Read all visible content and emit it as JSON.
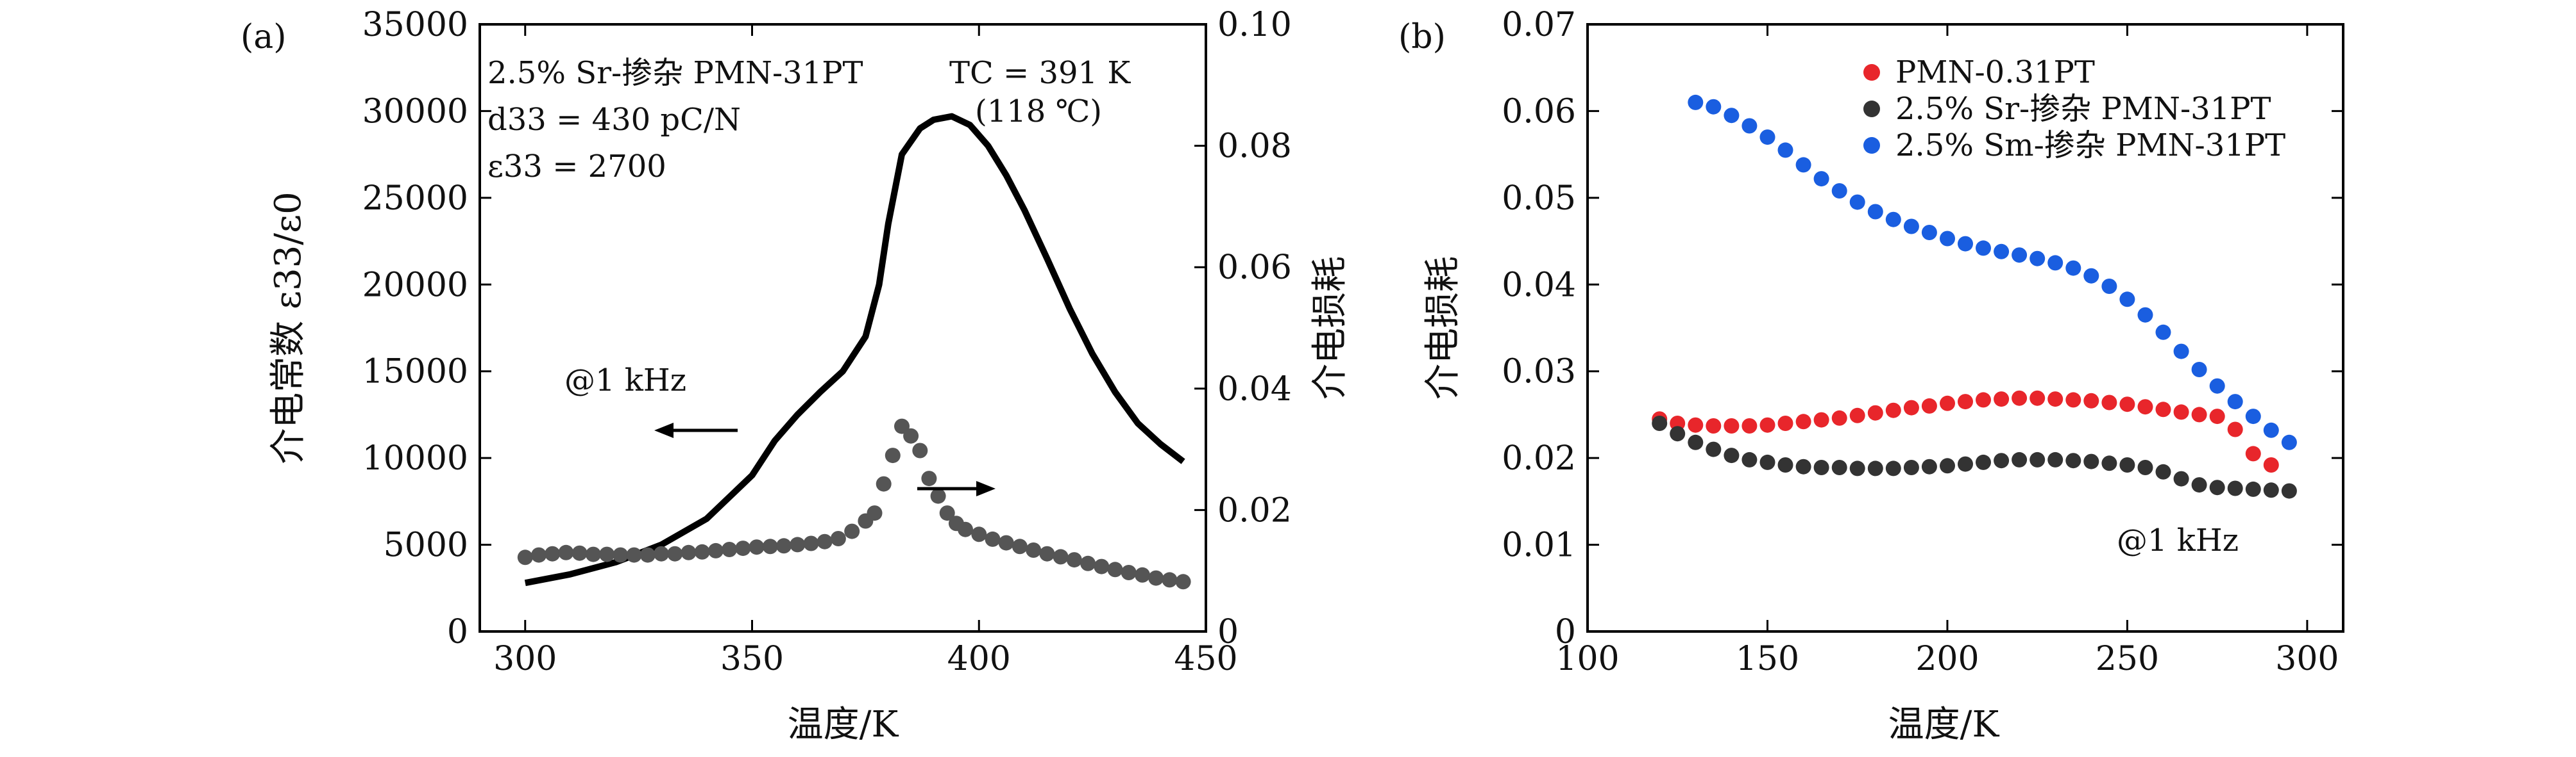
{
  "chart_data": [
    {
      "type": "line",
      "panel_label": "(a)",
      "xlabel": "温度/K",
      "ylabel": "介电常数 ε33/ε0",
      "ylabel_right": "介电损耗",
      "xlim": [
        290,
        450
      ],
      "ylim": [
        0,
        35000
      ],
      "ylim_right": [
        0,
        0.1
      ],
      "xticks": [
        "300",
        "350",
        "400",
        "450"
      ],
      "yticks": [
        "0",
        "5000",
        "10000",
        "15000",
        "20000",
        "25000",
        "30000",
        "35000"
      ],
      "yticks_right": [
        "0",
        "0.02",
        "0.04",
        "0.06",
        "0.08",
        "0.10"
      ],
      "annotations": {
        "composition": "2.5% Sr-掺杂 PMN-31PT",
        "d33": "d33 = 430 pC/N",
        "eps33": "ε33 = 2700",
        "tc": "TC = 391 K",
        "tc_c": "(118 ℃)",
        "freq": "@1 kHz"
      },
      "series": [
        {
          "axis": "left",
          "style": "solid line",
          "color": "#000000",
          "x": [
            300,
            310,
            320,
            330,
            340,
            350,
            355,
            360,
            365,
            370,
            375,
            378,
            380,
            383,
            387,
            390,
            394,
            398,
            402,
            406,
            410,
            415,
            420,
            425,
            430,
            435,
            440,
            445
          ],
          "y": [
            2800,
            3300,
            4000,
            5000,
            6500,
            9000,
            11000,
            12500,
            13800,
            15000,
            17000,
            20000,
            23500,
            27500,
            29000,
            29500,
            29700,
            29200,
            28000,
            26300,
            24300,
            21500,
            18600,
            16000,
            13800,
            12000,
            10800,
            9800
          ]
        },
        {
          "axis": "right",
          "style": "dots",
          "color": "#555555",
          "x": [
            300,
            303,
            306,
            309,
            312,
            315,
            318,
            321,
            324,
            327,
            330,
            333,
            336,
            339,
            342,
            345,
            348,
            351,
            354,
            357,
            360,
            363,
            366,
            369,
            372,
            375,
            377,
            379,
            381,
            383,
            385,
            387,
            389,
            391,
            393,
            395,
            397,
            400,
            403,
            406,
            409,
            412,
            415,
            418,
            421,
            424,
            427,
            430,
            433,
            436,
            439,
            442,
            445
          ],
          "y": [
            0.0122,
            0.0126,
            0.0128,
            0.013,
            0.0129,
            0.0127,
            0.0127,
            0.0126,
            0.0126,
            0.0126,
            0.0128,
            0.0128,
            0.013,
            0.0131,
            0.0133,
            0.0135,
            0.0137,
            0.0139,
            0.014,
            0.0141,
            0.0143,
            0.0145,
            0.0148,
            0.0153,
            0.0165,
            0.0182,
            0.0195,
            0.0243,
            0.029,
            0.0338,
            0.0322,
            0.0298,
            0.0252,
            0.0223,
            0.0195,
            0.0178,
            0.0168,
            0.016,
            0.0152,
            0.0146,
            0.014,
            0.0134,
            0.0128,
            0.0123,
            0.0118,
            0.0112,
            0.0107,
            0.0102,
            0.0097,
            0.0093,
            0.0088,
            0.0085,
            0.0082
          ]
        }
      ]
    },
    {
      "type": "scatter",
      "panel_label": "(b)",
      "xlabel": "温度/K",
      "ylabel": "介电损耗",
      "xlim": [
        100,
        310
      ],
      "ylim": [
        0,
        0.07
      ],
      "xticks": [
        "100",
        "150",
        "200",
        "250",
        "300"
      ],
      "yticks": [
        "0",
        "0.01",
        "0.02",
        "0.03",
        "0.04",
        "0.05",
        "0.06",
        "0.07"
      ],
      "annotations": {
        "freq": "@1 kHz"
      },
      "legend_position": "top-center",
      "series": [
        {
          "name": "PMN-0.31PT",
          "color": "#e8262b",
          "x": [
            120,
            125,
            130,
            135,
            140,
            145,
            150,
            155,
            160,
            165,
            170,
            175,
            180,
            185,
            190,
            195,
            200,
            205,
            210,
            215,
            220,
            225,
            230,
            235,
            240,
            245,
            250,
            255,
            260,
            265,
            270,
            275,
            280,
            285,
            290
          ],
          "y": [
            0.0245,
            0.024,
            0.0238,
            0.0237,
            0.0237,
            0.0237,
            0.0238,
            0.024,
            0.0242,
            0.0244,
            0.0246,
            0.0249,
            0.0252,
            0.0255,
            0.0258,
            0.026,
            0.0263,
            0.0265,
            0.0267,
            0.0268,
            0.0269,
            0.0269,
            0.0268,
            0.0267,
            0.0266,
            0.0264,
            0.0262,
            0.0259,
            0.0256,
            0.0253,
            0.025,
            0.0248,
            0.0233,
            0.0205,
            0.0192
          ]
        },
        {
          "name": "2.5% Sr-掺杂 PMN-31PT",
          "color": "#333333",
          "x": [
            120,
            125,
            130,
            135,
            140,
            145,
            150,
            155,
            160,
            165,
            170,
            175,
            180,
            185,
            190,
            195,
            200,
            205,
            210,
            215,
            220,
            225,
            230,
            235,
            240,
            245,
            250,
            255,
            260,
            265,
            270,
            275,
            280,
            285,
            290,
            295
          ],
          "y": [
            0.024,
            0.0228,
            0.0218,
            0.021,
            0.0203,
            0.0198,
            0.0195,
            0.0192,
            0.019,
            0.0189,
            0.0189,
            0.0188,
            0.0188,
            0.0188,
            0.0189,
            0.019,
            0.0191,
            0.0193,
            0.0195,
            0.0197,
            0.0198,
            0.0198,
            0.0198,
            0.0197,
            0.0196,
            0.0194,
            0.0192,
            0.0189,
            0.0184,
            0.0176,
            0.0169,
            0.0166,
            0.0165,
            0.0164,
            0.0163,
            0.0162
          ]
        },
        {
          "name": "2.5% Sm-掺杂 PMN-31PT",
          "color": "#1a5ee0",
          "x": [
            130,
            135,
            140,
            145,
            150,
            155,
            160,
            165,
            170,
            175,
            180,
            185,
            190,
            195,
            200,
            205,
            210,
            215,
            220,
            225,
            230,
            235,
            240,
            245,
            250,
            255,
            260,
            265,
            270,
            275,
            280,
            285,
            290,
            295
          ],
          "y": [
            0.061,
            0.0605,
            0.0595,
            0.0583,
            0.057,
            0.0555,
            0.0538,
            0.0522,
            0.0508,
            0.0495,
            0.0484,
            0.0475,
            0.0467,
            0.046,
            0.0453,
            0.0447,
            0.0442,
            0.0438,
            0.0434,
            0.043,
            0.0425,
            0.0419,
            0.041,
            0.0398,
            0.0383,
            0.0365,
            0.0345,
            0.0323,
            0.0302,
            0.0283,
            0.0265,
            0.0248,
            0.0232,
            0.0218
          ]
        }
      ]
    }
  ]
}
